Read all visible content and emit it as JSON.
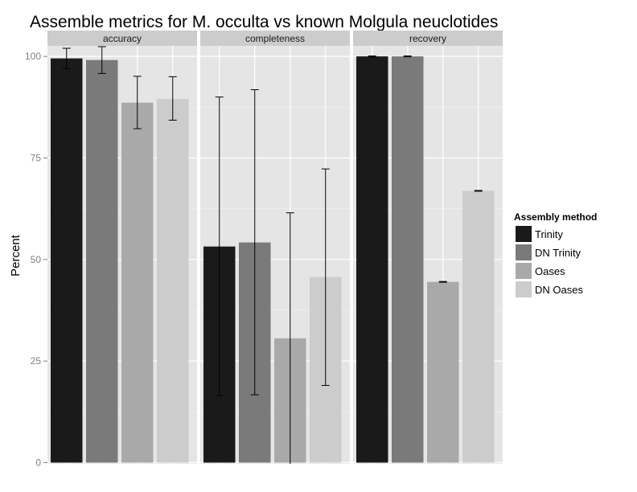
{
  "chart_data": {
    "type": "bar",
    "title": "Assemble metrics for M. occulta vs known Molgula neuclotides",
    "ylabel": "Percent",
    "xlabel": "",
    "ylim": [
      0,
      100
    ],
    "yticks": [
      0,
      25,
      50,
      75,
      100
    ],
    "grid": true,
    "legend_position": "right",
    "legend_title": "Assembly method",
    "panels": [
      "accuracy",
      "completeness",
      "recovery"
    ],
    "series": [
      {
        "name": "Trinity",
        "color": "#1a1a1a",
        "values": [
          99.5,
          53.2,
          100.0
        ],
        "error_low": [
          97.0,
          16.5,
          99.9
        ],
        "error_high": [
          102.0,
          90.0,
          100.1
        ]
      },
      {
        "name": "DN Trinity",
        "color": "#7a7a7a",
        "values": [
          99.1,
          54.2,
          100.0
        ],
        "error_low": [
          95.8,
          16.7,
          99.9
        ],
        "error_high": [
          102.4,
          91.8,
          100.1
        ]
      },
      {
        "name": "Oases",
        "color": "#a9a9a9",
        "values": [
          88.6,
          30.6,
          44.5
        ],
        "error_low": [
          82.2,
          -0.5,
          44.4
        ],
        "error_high": [
          95.1,
          61.5,
          44.6
        ]
      },
      {
        "name": "DN Oases",
        "color": "#cccccc",
        "values": [
          89.5,
          45.7,
          66.9
        ],
        "error_low": [
          84.3,
          19.0,
          66.8
        ],
        "error_high": [
          95.0,
          72.3,
          67.0
        ]
      }
    ]
  }
}
